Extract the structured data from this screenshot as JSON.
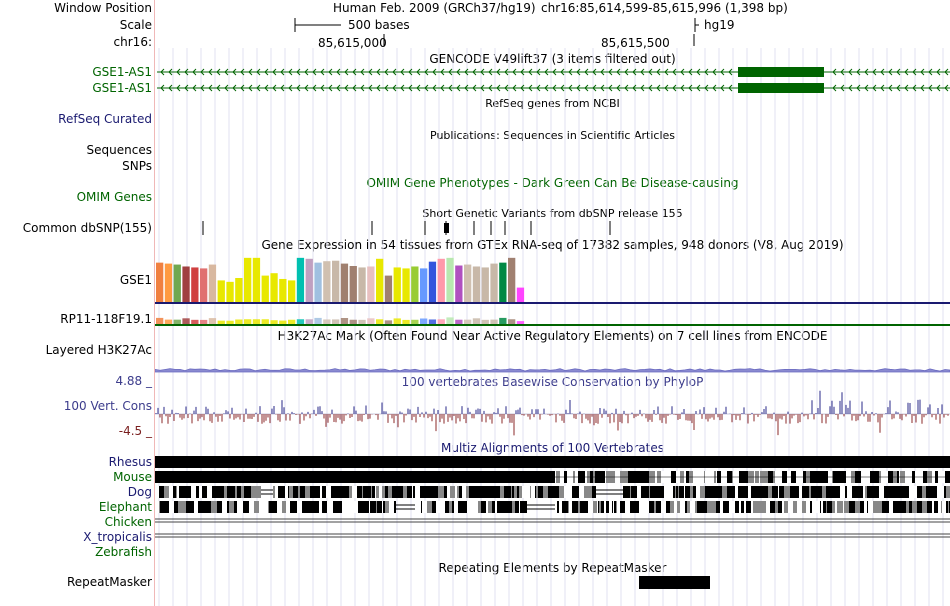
{
  "header": {
    "window_position_label": "Window Position",
    "scale_label": "Scale",
    "chrom_label": "chr16:",
    "assembly": "Human Feb. 2009 (GRCh37/hg19)",
    "position": "chr16:85,614,599-85,615,996 (1,398 bp)",
    "scale_text": "500 bases",
    "db": "hg19",
    "tick1": "85,615,000",
    "tick2": "85,615,500"
  },
  "tracks": {
    "gencode_title": "GENCODE V49lift37 (3 items filtered out)",
    "gencode_item1": "GSE1-AS1",
    "gencode_item2": "GSE1-AS1",
    "refseq_title": "RefSeq genes from NCBI",
    "refseq_label": "RefSeq Curated",
    "pubs_title": "Publications: Sequences in Scientific Articles",
    "sequences_label": "Sequences",
    "snps_label": "SNPs",
    "omim_title": "OMIM Gene Phenotypes - Dark Green Can Be Disease-causing",
    "omim_label": "OMIM Genes",
    "dbsnp_title": "Short Genetic Variants from dbSNP release 155",
    "dbsnp_label": "Common dbSNP(155)",
    "gtex_title": "Gene Expression in 54 tissues from GTEx RNA-seq of 17382 samples, 948 donors (V8, Aug 2019)",
    "gtex_gene1": "GSE1",
    "gtex_gene2": "RP11-118F19.1",
    "h3k27_title": "H3K27Ac Mark (Often Found Near Active Regulatory Elements) on 7 cell lines from ENCODE",
    "h3k27_label": "Layered H3K27Ac",
    "cons_title": "100 vertebrates Basewise Conservation by PhyloP",
    "cons_label": "100 Vert. Cons",
    "cons_max": "4.88 _",
    "cons_min": "-4.5 _",
    "multiz_title": "Multiz Alignments of 100 Vertebrates",
    "species": [
      "Rhesus",
      "Mouse",
      "Dog",
      "Elephant",
      "Chicken",
      "X_tropicalis",
      "Zebrafish"
    ],
    "rmsk_title": "Repeating Elements by RepeatMasker",
    "rmsk_label": "RepeatMasker"
  },
  "gtex_levels": [
    0.82,
    0.8,
    0.78,
    0.74,
    0.72,
    0.7,
    0.78,
    0.45,
    0.42,
    0.5,
    0.92,
    0.92,
    0.55,
    0.6,
    0.48,
    0.45,
    0.92,
    0.9,
    0.82,
    0.85,
    0.86,
    0.8,
    0.75,
    0.72,
    0.74,
    0.9,
    0.55,
    0.72,
    0.7,
    0.74,
    0.7,
    0.84,
    0.9,
    0.92,
    0.76,
    0.78,
    0.74,
    0.72,
    0.8,
    0.82,
    0.92,
    0.3
  ],
  "gtex_colors": [
    "#f08040",
    "#ff9a40",
    "#70a850",
    "#a04040",
    "#d04040",
    "#e07070",
    "#d8b8a0",
    "#e8e800",
    "#e8e800",
    "#e8e800",
    "#e8e800",
    "#e8e800",
    "#e8e800",
    "#e8e800",
    "#e8e800",
    "#e8e800",
    "#00c0b0",
    "#c0a0c0",
    "#a0c0e0",
    "#d0c0b0",
    "#c8b8a8",
    "#a08070",
    "#a08070",
    "#c8b8a8",
    "#e8c0c0",
    "#e8e800",
    "#a08070",
    "#e8e800",
    "#e8e800",
    "#99cc33",
    "#6699ff",
    "#3355dd",
    "#ff99aa",
    "#b8e8b0",
    "#b050c0",
    "#d0c0b0",
    "#c8b8a8",
    "#c8b8a8",
    "#c8b8a8",
    "#008844",
    "#a08070",
    "#ff44ff"
  ],
  "colors": {
    "track_green": "#006400",
    "label_navy": "#1a1a70",
    "cons_pos": "#2a2a88",
    "cons_neg": "#8b2a2a",
    "grid": "#dcdcf0"
  }
}
